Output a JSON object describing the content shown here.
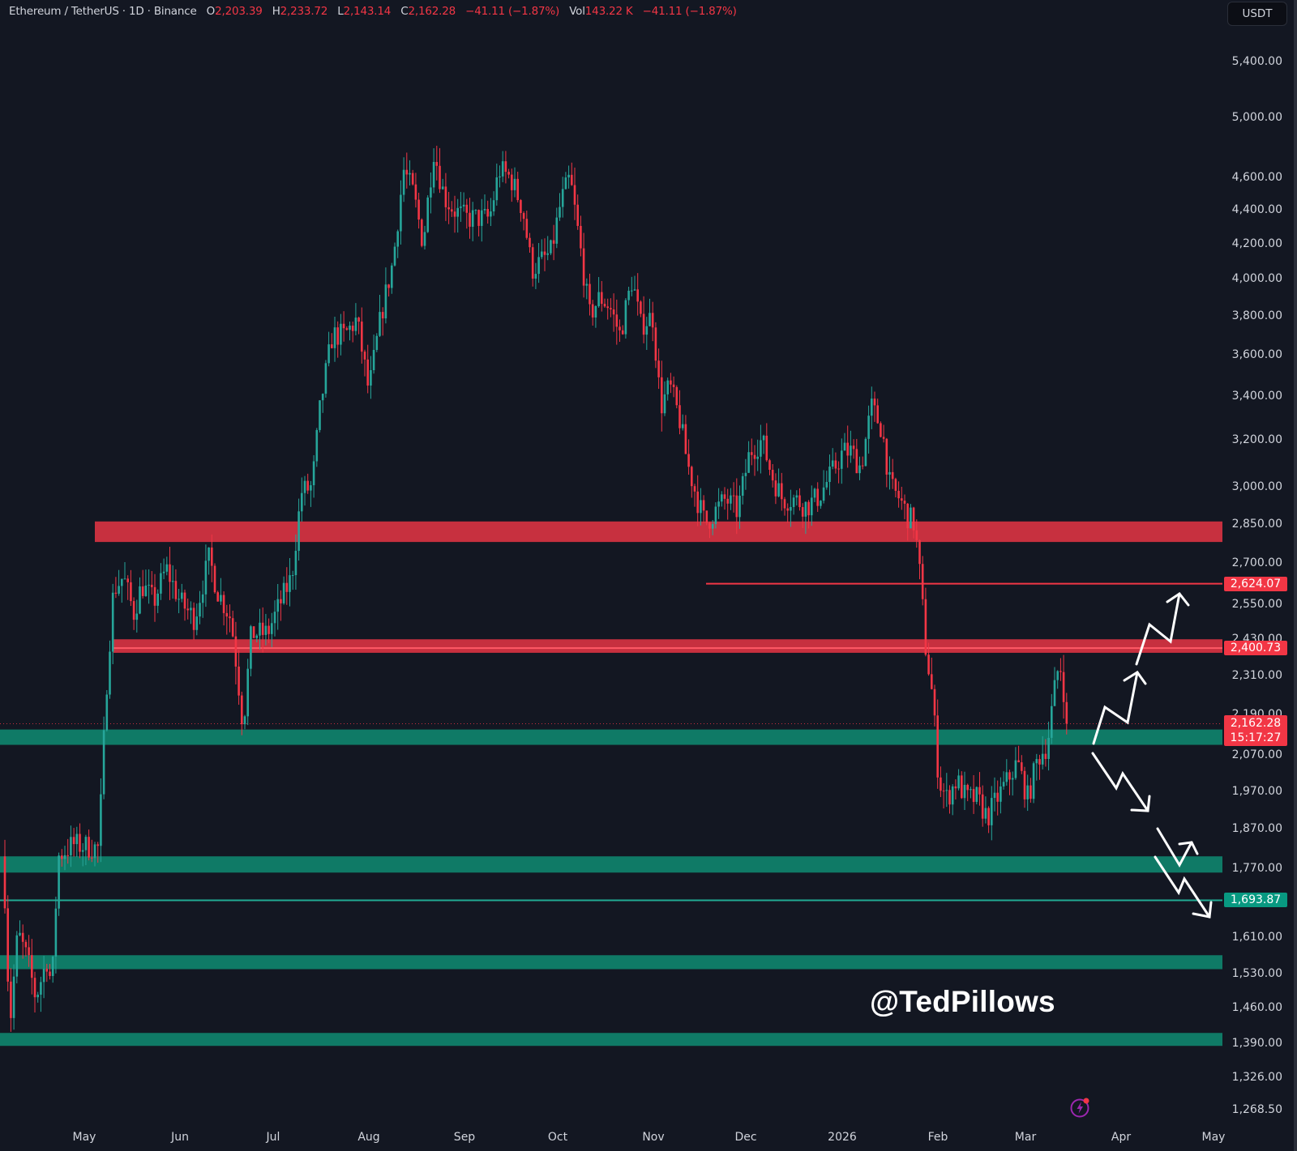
{
  "header": {
    "symbol": "Ethereum / TetherUS · 1D · Binance",
    "open_label": "O",
    "open": "2,203.39",
    "high_label": "H",
    "high": "2,233.72",
    "low_label": "L",
    "low": "2,143.14",
    "close_label": "C",
    "close": "2,162.28",
    "change": "−41.11 (−1.87%)",
    "vol_label": "Vol",
    "volume": "143.22 K",
    "vol_change": "−41.11 (−1.87%)"
  },
  "currency_button": {
    "label": "USDT"
  },
  "price_axis": {
    "ticks": [
      "5,400.00",
      "5,000.00",
      "4,600.00",
      "4,400.00",
      "4,200.00",
      "4,000.00",
      "3,800.00",
      "3,600.00",
      "3,400.00",
      "3,200.00",
      "3,000.00",
      "2,850.00",
      "2,700.00",
      "2,550.00",
      "2,430.00",
      "2,310.00",
      "2,190.00",
      "2,070.00",
      "1,970.00",
      "1,870.00",
      "1,770.00",
      "1,610.00",
      "1,530.00",
      "1,460.00",
      "1,390.00",
      "1,326.00",
      "1,268.50"
    ]
  },
  "price_tags": {
    "resistance_line": "2,624.07",
    "resistance_zone": "2,400.73",
    "last_price": "2,162.28",
    "countdown": "15:17:27",
    "support_line": "1,693.87"
  },
  "time_axis": {
    "ticks": [
      "May",
      "Jun",
      "Jul",
      "Aug",
      "Sep",
      "Oct",
      "Nov",
      "Dec",
      "2026",
      "Feb",
      "Mar",
      "Apr",
      "May"
    ]
  },
  "watermark": "@TedPillows",
  "icons": {
    "alert": "lightning-bolt-icon"
  },
  "colors": {
    "background": "#131722",
    "up": "#26a69a",
    "down": "#f23645",
    "resistance_zone": "#c7303f",
    "support_zone": "#0f7a66",
    "text": "#d1d4dc"
  },
  "chart_data": {
    "type": "candlestick",
    "title": "Ethereum / TetherUS · 1D · Binance",
    "xlabel": "",
    "ylabel": "USDT",
    "scale": "log",
    "ylim": [
      1230,
      5700
    ],
    "x_ticks": [
      "May",
      "Jun",
      "Jul",
      "Aug",
      "Sep",
      "Oct",
      "Nov",
      "Dec",
      "2026",
      "Feb",
      "Mar",
      "Apr",
      "May"
    ],
    "y_ticks": [
      5400,
      5000,
      4600,
      4400,
      4200,
      4000,
      3800,
      3600,
      3400,
      3200,
      3000,
      2850,
      2700,
      2550,
      2430,
      2310,
      2190,
      2070,
      1970,
      1870,
      1770,
      1610,
      1530,
      1460,
      1390,
      1326,
      1268.5
    ],
    "last_bar": {
      "open": 2203.39,
      "high": 2233.72,
      "low": 2143.14,
      "close": 2162.28,
      "change": -41.11,
      "change_pct": -1.87,
      "volume": "143.22K"
    },
    "price_path_keypoints": [
      {
        "date": "Apr",
        "price": 1800
      },
      {
        "date": "Apr",
        "price": 1420
      },
      {
        "date": "late Apr",
        "price": 1600
      },
      {
        "date": "late Apr",
        "price": 1800
      },
      {
        "date": "May",
        "price": 1820
      },
      {
        "date": "early May",
        "price": 2500
      },
      {
        "date": "mid May",
        "price": 2650
      },
      {
        "date": "Jun",
        "price": 2550
      },
      {
        "date": "Jun",
        "price": 2800
      },
      {
        "date": "late Jun",
        "price": 2200
      },
      {
        "date": "Jul",
        "price": 2500
      },
      {
        "date": "Jul",
        "price": 2950
      },
      {
        "date": "late Jul",
        "price": 3800
      },
      {
        "date": "Aug",
        "price": 3600
      },
      {
        "date": "Aug",
        "price": 4700
      },
      {
        "date": "late Aug",
        "price": 4850
      },
      {
        "date": "Sep",
        "price": 4300
      },
      {
        "date": "Sep",
        "price": 4600
      },
      {
        "date": "Oct",
        "price": 4000
      },
      {
        "date": "early Oct",
        "price": 4700
      },
      {
        "date": "Oct",
        "price": 3850
      },
      {
        "date": "Oct",
        "price": 4150
      },
      {
        "date": "Nov",
        "price": 3550
      },
      {
        "date": "Nov",
        "price": 3100
      },
      {
        "date": "late Nov",
        "price": 2800
      },
      {
        "date": "Dec",
        "price": 3200
      },
      {
        "date": "Dec",
        "price": 2900
      },
      {
        "date": "Jan",
        "price": 3350
      },
      {
        "date": "late Jan",
        "price": 2950
      },
      {
        "date": "Feb",
        "price": 2100
      },
      {
        "date": "Feb",
        "price": 1800
      },
      {
        "date": "Feb",
        "price": 2050
      },
      {
        "date": "Mar",
        "price": 1850
      },
      {
        "date": "mid Mar",
        "price": 2380
      },
      {
        "date": "Mar",
        "price": 2162.28
      }
    ],
    "annotations": {
      "resistance_zones": [
        [
          2780,
          2860
        ],
        [
          2385,
          2430
        ]
      ],
      "support_zones": [
        [
          2100,
          2145
        ],
        [
          1760,
          1800
        ],
        [
          1540,
          1570
        ],
        [
          1385,
          1410
        ]
      ],
      "horizontal_lines": [
        {
          "price": 2624.07,
          "color": "red"
        },
        {
          "price": 1693.87,
          "color": "green"
        }
      ],
      "projections": [
        "bullish zig-zag arrow from 2,100 up to ~2,620",
        "bearish zig-zag arrow from 2,100 down to ~1,850",
        "bearish zig-zag arrow from ~1,800 down to ~1,660 with small bounce arrow"
      ]
    },
    "legend": [],
    "grid": false
  }
}
